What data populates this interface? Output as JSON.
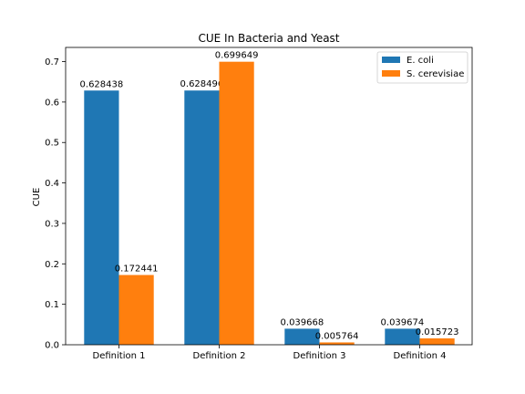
{
  "chart_data": {
    "type": "bar",
    "title": "CUE In Bacteria and Yeast",
    "xlabel": "",
    "ylabel": "CUE",
    "categories": [
      "Definition 1",
      "Definition 2",
      "Definition 3",
      "Definition 4"
    ],
    "series": [
      {
        "name": "E. coli",
        "color": "#1f77b4",
        "values": [
          0.628438,
          0.628496,
          0.039668,
          0.039674
        ],
        "labels": [
          "0.628438",
          "0.628496",
          "0.039668",
          "0.039674"
        ]
      },
      {
        "name": "S. cerevisiae",
        "color": "#ff7f0e",
        "values": [
          0.172441,
          0.699649,
          0.005764,
          0.015723
        ],
        "labels": [
          "0.172441",
          "0.699649",
          "0.005764",
          "0.015723"
        ]
      }
    ],
    "ylim": [
      0,
      0.735
    ],
    "yticks": [
      0.0,
      0.1,
      0.2,
      0.3,
      0.4,
      0.5,
      0.6,
      0.7
    ],
    "ytick_labels": [
      "0.0",
      "0.1",
      "0.2",
      "0.3",
      "0.4",
      "0.5",
      "0.6",
      "0.7"
    ],
    "grid": false,
    "legend_position": "top-right"
  }
}
